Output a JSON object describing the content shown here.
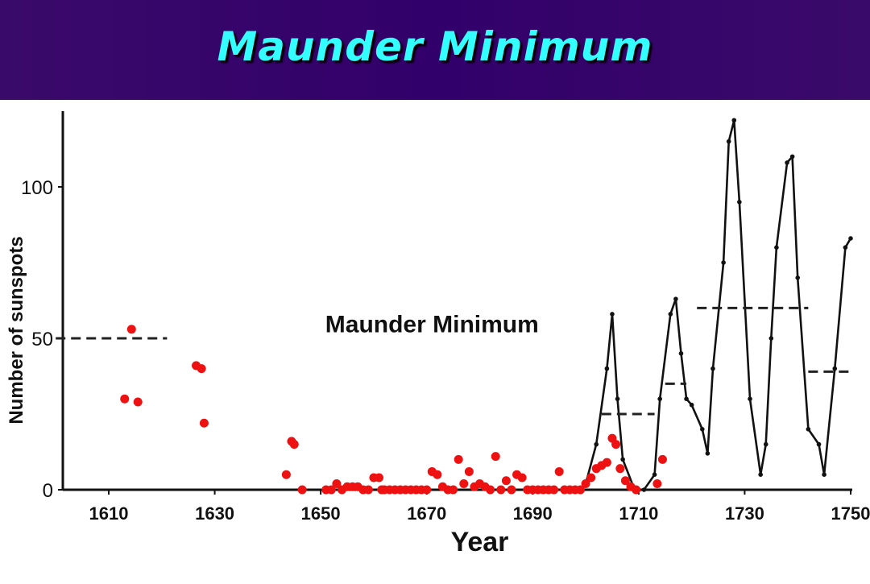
{
  "slide": {
    "title": "Maunder Minimum"
  },
  "chart_data": {
    "type": "scatter",
    "title": "",
    "xlabel": "Year",
    "ylabel": "Number of sunspots",
    "annotation": "Maunder Minimum",
    "xlim": [
      1600,
      1750
    ],
    "ylim": [
      0,
      125
    ],
    "x_ticks": [
      1610,
      1630,
      1650,
      1670,
      1690,
      1710,
      1730,
      1750
    ],
    "y_ticks": [
      0,
      50,
      100
    ],
    "grid": false,
    "legend": "none",
    "colors": {
      "points": "#ee1111",
      "line": "#111111",
      "dashed": "#222222"
    },
    "series": [
      {
        "kind": "points",
        "x": [
          1613,
          1614.3,
          1615.5,
          1626.5,
          1627.5,
          1628,
          1643.5,
          1644.5,
          1645,
          1646.5,
          1651,
          1652,
          1653,
          1654,
          1655,
          1656,
          1657,
          1658,
          1659,
          1660,
          1661,
          1661.5,
          1662,
          1663,
          1664,
          1665,
          1666,
          1667,
          1668,
          1669,
          1670,
          1671,
          1672,
          1673,
          1674,
          1675,
          1676,
          1677,
          1678,
          1679,
          1680,
          1681,
          1682,
          1683,
          1684,
          1685,
          1686,
          1687,
          1688,
          1689,
          1690,
          1691,
          1692,
          1693,
          1694,
          1695,
          1696,
          1697,
          1698,
          1699,
          1700,
          1701,
          1702,
          1703,
          1704,
          1705,
          1705.7,
          1706.5,
          1707.5,
          1708.5,
          1709.5,
          1713.5,
          1714.5
        ],
        "y": [
          30,
          53,
          29,
          41,
          40,
          22,
          5,
          16,
          15,
          0,
          0,
          0,
          2,
          0,
          1,
          1,
          1,
          0,
          0,
          4,
          4,
          0,
          0,
          0,
          0,
          0,
          0,
          0,
          0,
          0,
          0,
          6,
          5,
          1,
          0,
          0,
          10,
          2,
          6,
          1,
          2,
          1,
          0,
          11,
          0,
          3,
          0,
          5,
          4,
          0,
          0,
          0,
          0,
          0,
          0,
          6,
          0,
          0,
          0,
          0,
          2,
          4,
          7,
          8,
          9,
          17,
          15,
          7,
          3,
          1,
          0,
          2,
          10
        ]
      },
      {
        "kind": "line",
        "x": [
          1700,
          1702,
          1704,
          1705,
          1706,
          1707,
          1709,
          1710,
          1711,
          1713,
          1714,
          1716,
          1717,
          1718,
          1719,
          1720,
          1722,
          1723,
          1724,
          1726,
          1727,
          1728,
          1729,
          1731,
          1733,
          1734,
          1735,
          1736,
          1738,
          1739,
          1740,
          1742,
          1744,
          1745,
          1747,
          1749,
          1750
        ],
        "y": [
          2,
          15,
          40,
          58,
          30,
          10,
          1,
          0,
          0,
          5,
          30,
          58,
          63,
          45,
          30,
          28,
          20,
          12,
          40,
          75,
          115,
          122,
          95,
          30,
          5,
          15,
          50,
          80,
          108,
          110,
          70,
          20,
          15,
          5,
          40,
          80,
          83
        ]
      },
      {
        "kind": "dashed",
        "x": [
          1600,
          1621
        ],
        "y": [
          50,
          50
        ]
      },
      {
        "kind": "dashed",
        "x": [
          1703,
          1713
        ],
        "y": [
          25,
          25
        ]
      },
      {
        "kind": "dashed",
        "x": [
          1715,
          1719
        ],
        "y": [
          35,
          35
        ]
      },
      {
        "kind": "dashed",
        "x": [
          1721,
          1742
        ],
        "y": [
          60,
          60
        ]
      },
      {
        "kind": "dashed",
        "x": [
          1742,
          1750
        ],
        "y": [
          39,
          39
        ]
      }
    ]
  }
}
